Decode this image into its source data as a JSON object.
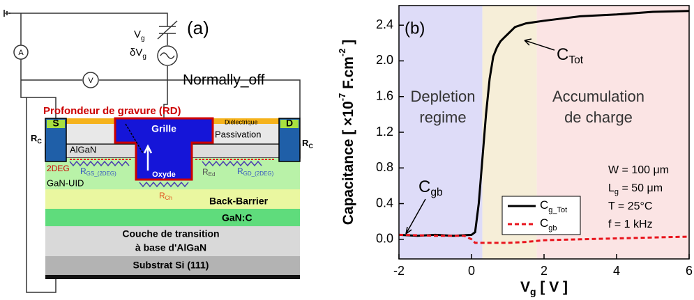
{
  "diagram": {
    "panel": "(a)",
    "vg": {
      "main": "V",
      "sub": "g"
    },
    "dvg": {
      "main": "δV",
      "sub": "g"
    },
    "ammeter": "A",
    "voltmeter": "V",
    "mode": "Normally_off",
    "etch": "Profondeur de gravure (RD)",
    "gate": "Grille",
    "dielectric": "Diélectrique",
    "passivation": "Passivation",
    "source": "S",
    "drain": "D",
    "rc": {
      "main": "R",
      "sub": "C"
    },
    "algan": "AlGaN",
    "twodeg": "2DEG",
    "rgs": {
      "main": "R",
      "sub": "GS_(2DEG)"
    },
    "oxide": "Oxyde",
    "red": {
      "main": "R",
      "sub": "Ed"
    },
    "rgd": {
      "main": "R",
      "sub": "GD_(2DEG)"
    },
    "ganuid": "GaN-UID",
    "rch": {
      "main": "R",
      "sub": "Ch"
    },
    "backbarrier": "Back-Barrier",
    "ganc": "GaN:C",
    "transition": [
      "Couche de transition",
      "à base d'AlGaN"
    ],
    "substrate": "Substrat Si (111)"
  },
  "chart_data": {
    "type": "line",
    "panel": "(b)",
    "x_label": [
      "V",
      "g",
      " [ V ]"
    ],
    "y_label": [
      "Capacitance [ ×10",
      "-7",
      " F.cm",
      "-2",
      " ]"
    ],
    "xlim": [
      -2,
      6
    ],
    "xticks": [
      -2,
      0,
      2,
      4,
      6
    ],
    "ylim": [
      -0.22,
      2.62
    ],
    "yticks": [
      {
        "value": 0,
        "label": "0.0"
      },
      0.4,
      0.8,
      {
        "value": 1.2,
        "label": "1.2"
      },
      {
        "value": 1.6,
        "label": "1.6"
      },
      {
        "value": 2,
        "label": "2.0"
      },
      2.4
    ],
    "regions": [
      {
        "from": -2,
        "to": 0.3,
        "color": "#dedcf8"
      },
      {
        "from": 0.3,
        "to": 1.8,
        "color": "#f6eed8"
      },
      {
        "from": 1.8,
        "to": 6,
        "color": "#fbe4e4"
      }
    ],
    "region_labels": [
      [
        "Depletion",
        "regime"
      ],
      [
        "Accumulation",
        "de charge"
      ]
    ],
    "annotations": {
      "ctot": {
        "main": "C",
        "sub": "Tot"
      },
      "cgb": {
        "main": "C",
        "sub": "gb"
      }
    },
    "conditions": [
      "W = 100 μm",
      {
        "main": "L",
        "sub": "g",
        "rest": " = 50 μm"
      },
      "T = 25°C",
      "f = 1 kHz"
    ],
    "series": [
      {
        "name": "C",
        "subscript": "g_Tot",
        "color": "#000000",
        "dash": false,
        "x": [
          -2,
          -1.5,
          -1,
          -0.5,
          0,
          0.1,
          0.2,
          0.3,
          0.4,
          0.5,
          0.6,
          0.7,
          0.8,
          0.9,
          1,
          1.2,
          1.5,
          2,
          3,
          4,
          5,
          6
        ],
        "values": [
          0.05,
          0.04,
          0.05,
          0.04,
          0.05,
          0.08,
          0.4,
          0.9,
          1.4,
          1.8,
          2.05,
          2.15,
          2.22,
          2.26,
          2.3,
          2.38,
          2.42,
          2.45,
          2.5,
          2.52,
          2.55,
          2.56
        ]
      },
      {
        "name": "C",
        "subscript": "gb",
        "color": "#e8141c",
        "dash": true,
        "x": [
          -2,
          -1,
          -0.2,
          0,
          0.1,
          1,
          1.5,
          2,
          3,
          4,
          5,
          6
        ],
        "values": [
          0.05,
          0.04,
          0.04,
          0,
          -0.04,
          -0.04,
          -0.03,
          -0.01,
          0,
          0.01,
          0.02,
          0.03
        ]
      }
    ]
  }
}
